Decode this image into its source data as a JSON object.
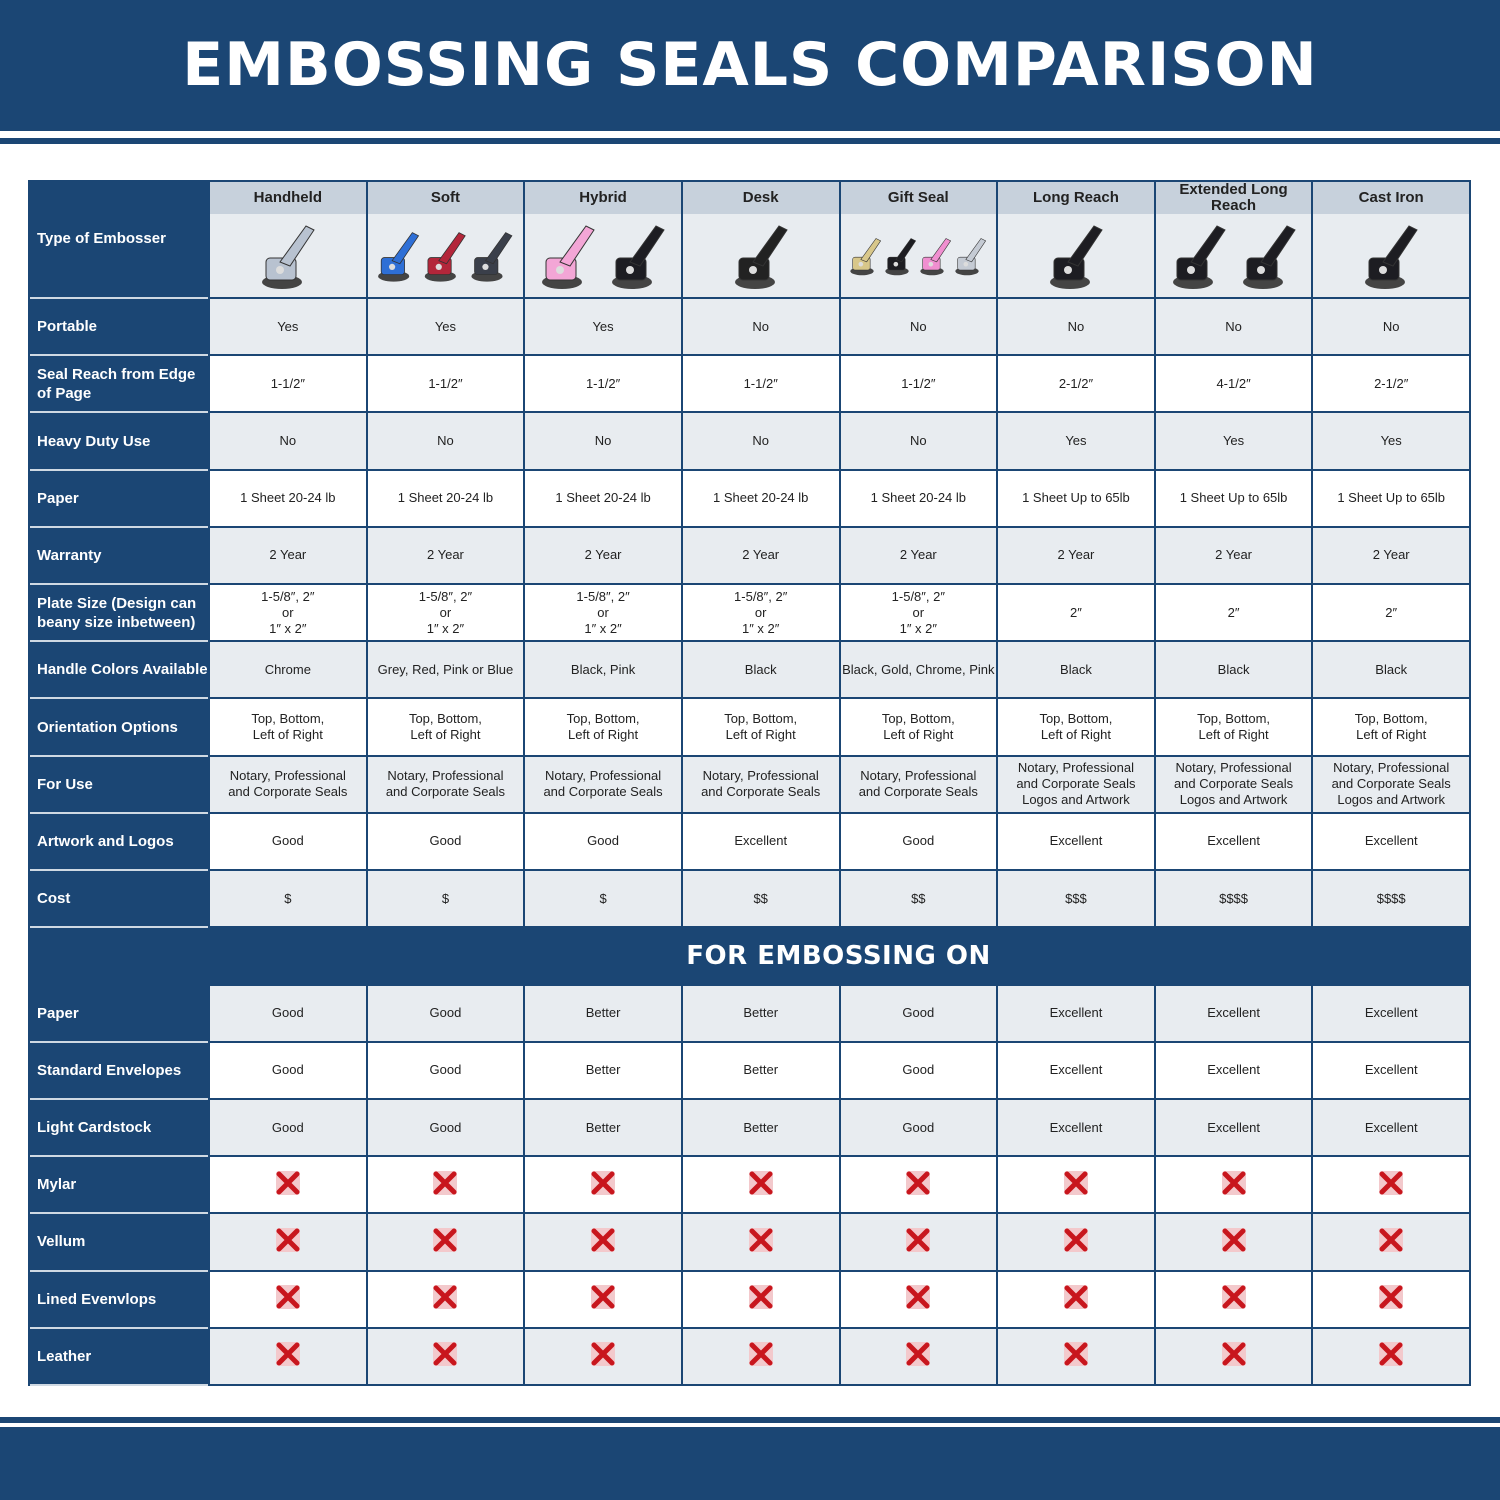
{
  "title": "EMBOSSING SEALS COMPARISON",
  "colors": {
    "navy": "#1b4674",
    "header_grey": "#c7d1dc",
    "row_grey": "#e8ecf0",
    "cross_red": "#c8161d"
  },
  "corner_label": "Type of Embosser",
  "columns": [
    {
      "name": "Handheld",
      "image": "chrome-handheld-embosser",
      "colors": [
        "#b8c2d0"
      ]
    },
    {
      "name": "Soft",
      "image": "soft-embossers-blue-red-grey",
      "colors": [
        "#2e6fd6",
        "#b3263a",
        "#3a3f4a"
      ]
    },
    {
      "name": "Hybrid",
      "image": "hybrid-embossers-pink-black",
      "colors": [
        "#f3a6d6",
        "#1d1d22"
      ]
    },
    {
      "name": "Desk",
      "image": "desk-embosser",
      "colors": [
        "#222"
      ]
    },
    {
      "name": "Gift Seal",
      "image": "gift-seal-embossers",
      "colors": [
        "#d8c78a",
        "#1d1d22",
        "#f08fd0",
        "#c5cbd4"
      ]
    },
    {
      "name": "Long Reach",
      "image": "long-reach-embosser",
      "colors": [
        "#1d1d22"
      ]
    },
    {
      "name": "Extended Long Reach",
      "image": "extended-long-reach-embossers",
      "colors": [
        "#1d1d22",
        "#1d1d22"
      ]
    },
    {
      "name": "Cast Iron",
      "image": "cast-iron-embosser",
      "colors": [
        "#1d1d22"
      ]
    }
  ],
  "rows": [
    {
      "label": "Portable",
      "values": [
        "Yes",
        "Yes",
        "Yes",
        "No",
        "No",
        "No",
        "No",
        "No"
      ]
    },
    {
      "label": "Seal Reach from Edge of Page",
      "values": [
        "1-1/2″",
        "1-1/2″",
        "1-1/2″",
        "1-1/2″",
        "1-1/2″",
        "2-1/2″",
        "4-1/2″",
        "2-1/2″"
      ]
    },
    {
      "label": "Heavy Duty Use",
      "values": [
        "No",
        "No",
        "No",
        "No",
        "No",
        "Yes",
        "Yes",
        "Yes"
      ]
    },
    {
      "label": "Paper",
      "values": [
        "1 Sheet 20-24 lb",
        "1 Sheet 20-24 lb",
        "1 Sheet 20-24 lb",
        "1 Sheet 20-24 lb",
        "1 Sheet 20-24 lb",
        "1 Sheet Up to 65lb",
        "1 Sheet Up to 65lb",
        "1 Sheet Up to 65lb"
      ]
    },
    {
      "label": "Warranty",
      "values": [
        "2 Year",
        "2 Year",
        "2 Year",
        "2 Year",
        "2 Year",
        "2 Year",
        "2 Year",
        "2 Year"
      ]
    },
    {
      "label": "Plate Size (Design can beany size inbetween)",
      "values": [
        "1-5/8″, 2″\nor\n1″ x 2″",
        "1-5/8″, 2″\nor\n1″ x 2″",
        "1-5/8″, 2″\nor\n1″ x 2″",
        "1-5/8″, 2″\nor\n1″ x 2″",
        "1-5/8″, 2″\nor\n1″ x 2″",
        "2″",
        "2″",
        "2″"
      ]
    },
    {
      "label": "Handle Colors Available",
      "values": [
        "Chrome",
        "Grey, Red, Pink or Blue",
        "Black, Pink",
        "Black",
        "Black, Gold, Chrome, Pink",
        "Black",
        "Black",
        "Black"
      ]
    },
    {
      "label": "Orientation Options",
      "values": [
        "Top, Bottom,\nLeft of Right",
        "Top, Bottom,\nLeft of Right",
        "Top, Bottom,\nLeft of Right",
        "Top, Bottom,\nLeft of Right",
        "Top, Bottom,\nLeft of Right",
        "Top, Bottom,\nLeft of Right",
        "Top, Bottom,\nLeft of Right",
        "Top, Bottom,\nLeft of Right"
      ]
    },
    {
      "label": "For Use",
      "values": [
        "Notary, Professional\nand Corporate Seals",
        "Notary, Professional\nand Corporate Seals",
        "Notary, Professional\nand Corporate Seals",
        "Notary, Professional\nand Corporate Seals",
        "Notary, Professional\nand Corporate Seals",
        "Notary, Professional\nand Corporate Seals\nLogos and Artwork",
        "Notary, Professional\nand Corporate Seals\nLogos and Artwork",
        "Notary, Professional\nand Corporate Seals\nLogos and Artwork"
      ]
    },
    {
      "label": "Artwork and Logos",
      "values": [
        "Good",
        "Good",
        "Good",
        "Excellent",
        "Good",
        "Excellent",
        "Excellent",
        "Excellent"
      ]
    },
    {
      "label": "Cost",
      "values": [
        "$",
        "$",
        "$",
        "$$",
        "$$",
        "$$$",
        "$$$$",
        "$$$$"
      ]
    }
  ],
  "section_title": "FOR EMBOSSING ON",
  "embossing_rows": [
    {
      "label": "Paper",
      "values": [
        "Good",
        "Good",
        "Better",
        "Better",
        "Good",
        "Excellent",
        "Excellent",
        "Excellent"
      ]
    },
    {
      "label": "Standard Envelopes",
      "values": [
        "Good",
        "Good",
        "Better",
        "Better",
        "Good",
        "Excellent",
        "Excellent",
        "Excellent"
      ]
    },
    {
      "label": "Light Cardstock",
      "values": [
        "Good",
        "Good",
        "Better",
        "Better",
        "Good",
        "Excellent",
        "Excellent",
        "Excellent"
      ]
    },
    {
      "label": "Mylar",
      "icon": "red-x-icon"
    },
    {
      "label": "Vellum",
      "icon": "red-x-icon"
    },
    {
      "label": "Lined Evenvlops",
      "icon": "red-x-icon"
    },
    {
      "label": "Leather",
      "icon": "red-x-icon"
    }
  ]
}
